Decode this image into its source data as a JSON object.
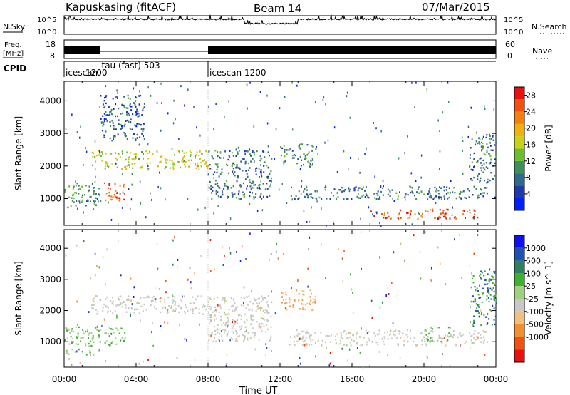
{
  "header": {
    "station": "Kapuskasing (fitACF)",
    "beam": "Beam 14",
    "date": "07/Mar/2015"
  },
  "top_panels": {
    "nsky_label": "N.Sky",
    "nsky_ticks": [
      "10^5",
      "10^0"
    ],
    "nsearch_label": "N.Search",
    "nsearch_ticks": [
      "10^5",
      "10^0"
    ],
    "freq_label_1": "Freq.",
    "freq_label_2": "[MHz]",
    "freq_ticks": [
      "18",
      "8"
    ],
    "nave_label": "Nave",
    "nave_ticks": [
      "60",
      "0"
    ],
    "cpid_label": "CPID",
    "cpid_segments": [
      {
        "start_hour": 0.0,
        "label": "icescan",
        "sub": "1200"
      },
      {
        "start_hour": 2.0,
        "label": "tau (fast) 503",
        "sub": ""
      },
      {
        "start_hour": 8.0,
        "label": "icescan  1200",
        "sub": ""
      }
    ]
  },
  "colors": {
    "power_scale": [
      "#0020ff",
      "#1f3aa8",
      "#2f6a8a",
      "#3f8f5a",
      "#6bbf2f",
      "#c8d21a",
      "#f0b010",
      "#f08010",
      "#f05010",
      "#e81010"
    ],
    "velocity_scale": [
      "#1010f0",
      "#2050b0",
      "#308060",
      "#40b030",
      "#a0d080",
      "#c8c8c8",
      "#f0c080",
      "#f09030",
      "#f05010",
      "#e81010"
    ],
    "accent_line": "#000000"
  },
  "chart_data": [
    {
      "type": "heatmap",
      "title": "",
      "xlabel": "Time UT",
      "ylabel": "Slant Range [km]",
      "x_ticks": [
        "00:00",
        "04:00",
        "08:00",
        "12:00",
        "16:00",
        "20:00",
        "00:00"
      ],
      "y_ticks": [
        1000,
        2000,
        3000,
        4000
      ],
      "xlim_hours": [
        0,
        24
      ],
      "ylim_km": [
        180,
        4600
      ],
      "colorbar": {
        "label": "Power [dB]",
        "ticks": [
          4,
          8,
          12,
          16,
          20,
          24,
          28
        ],
        "range": [
          0,
          30
        ]
      },
      "regions": [
        {
          "t0": 0.0,
          "t1": 2.0,
          "r0": 700,
          "r1": 1500,
          "value": 10
        },
        {
          "t0": 1.5,
          "t1": 8.0,
          "r0": 1900,
          "r1": 2500,
          "value": 16
        },
        {
          "t0": 2.2,
          "t1": 3.4,
          "r0": 900,
          "r1": 1500,
          "value": 26
        },
        {
          "t0": 2.0,
          "t1": 4.5,
          "r0": 2800,
          "r1": 4200,
          "value": 6
        },
        {
          "t0": 8.0,
          "t1": 11.5,
          "r0": 1000,
          "r1": 2500,
          "value": 8
        },
        {
          "t0": 12.0,
          "t1": 14.0,
          "r0": 2000,
          "r1": 2700,
          "value": 10
        },
        {
          "t0": 12.5,
          "t1": 23.5,
          "r0": 1000,
          "r1": 1400,
          "value": 8
        },
        {
          "t0": 17.0,
          "t1": 23.0,
          "r0": 400,
          "r1": 700,
          "value": 26
        },
        {
          "t0": 22.5,
          "t1": 24.0,
          "r0": 1500,
          "r1": 3000,
          "value": 8
        }
      ]
    },
    {
      "type": "heatmap",
      "title": "",
      "xlabel": "Time UT",
      "ylabel": "Slant Range [km]",
      "x_ticks": [
        "00:00",
        "04:00",
        "08:00",
        "12:00",
        "16:00",
        "20:00",
        "00:00"
      ],
      "y_ticks": [
        1000,
        2000,
        3000,
        4000
      ],
      "xlim_hours": [
        0,
        24
      ],
      "ylim_km": [
        180,
        4600
      ],
      "colorbar": {
        "label": "Velocity [m s^-1]",
        "ticks": [
          "1000",
          "500",
          "100",
          "25",
          "-25",
          "-100",
          "-500",
          "-1000"
        ]
      },
      "regions": [
        {
          "t0": 0.0,
          "t1": 2.0,
          "r0": 600,
          "r1": 1500,
          "value": 100
        },
        {
          "t0": 1.5,
          "t1": 8.0,
          "r0": 1900,
          "r1": 2500,
          "value": 0
        },
        {
          "t0": 2.2,
          "t1": 3.4,
          "r0": 900,
          "r1": 1500,
          "value": 100
        },
        {
          "t0": 8.0,
          "t1": 11.5,
          "r0": 1000,
          "r1": 2500,
          "value": 0
        },
        {
          "t0": 12.0,
          "t1": 14.0,
          "r0": 2000,
          "r1": 2700,
          "value": -100
        },
        {
          "t0": 12.5,
          "t1": 23.5,
          "r0": 900,
          "r1": 1400,
          "value": 0
        },
        {
          "t0": 20.0,
          "t1": 21.5,
          "r0": 1000,
          "r1": 1500,
          "value": 100
        },
        {
          "t0": 22.5,
          "t1": 24.0,
          "r0": 1500,
          "r1": 3300,
          "value": 500
        }
      ]
    }
  ]
}
